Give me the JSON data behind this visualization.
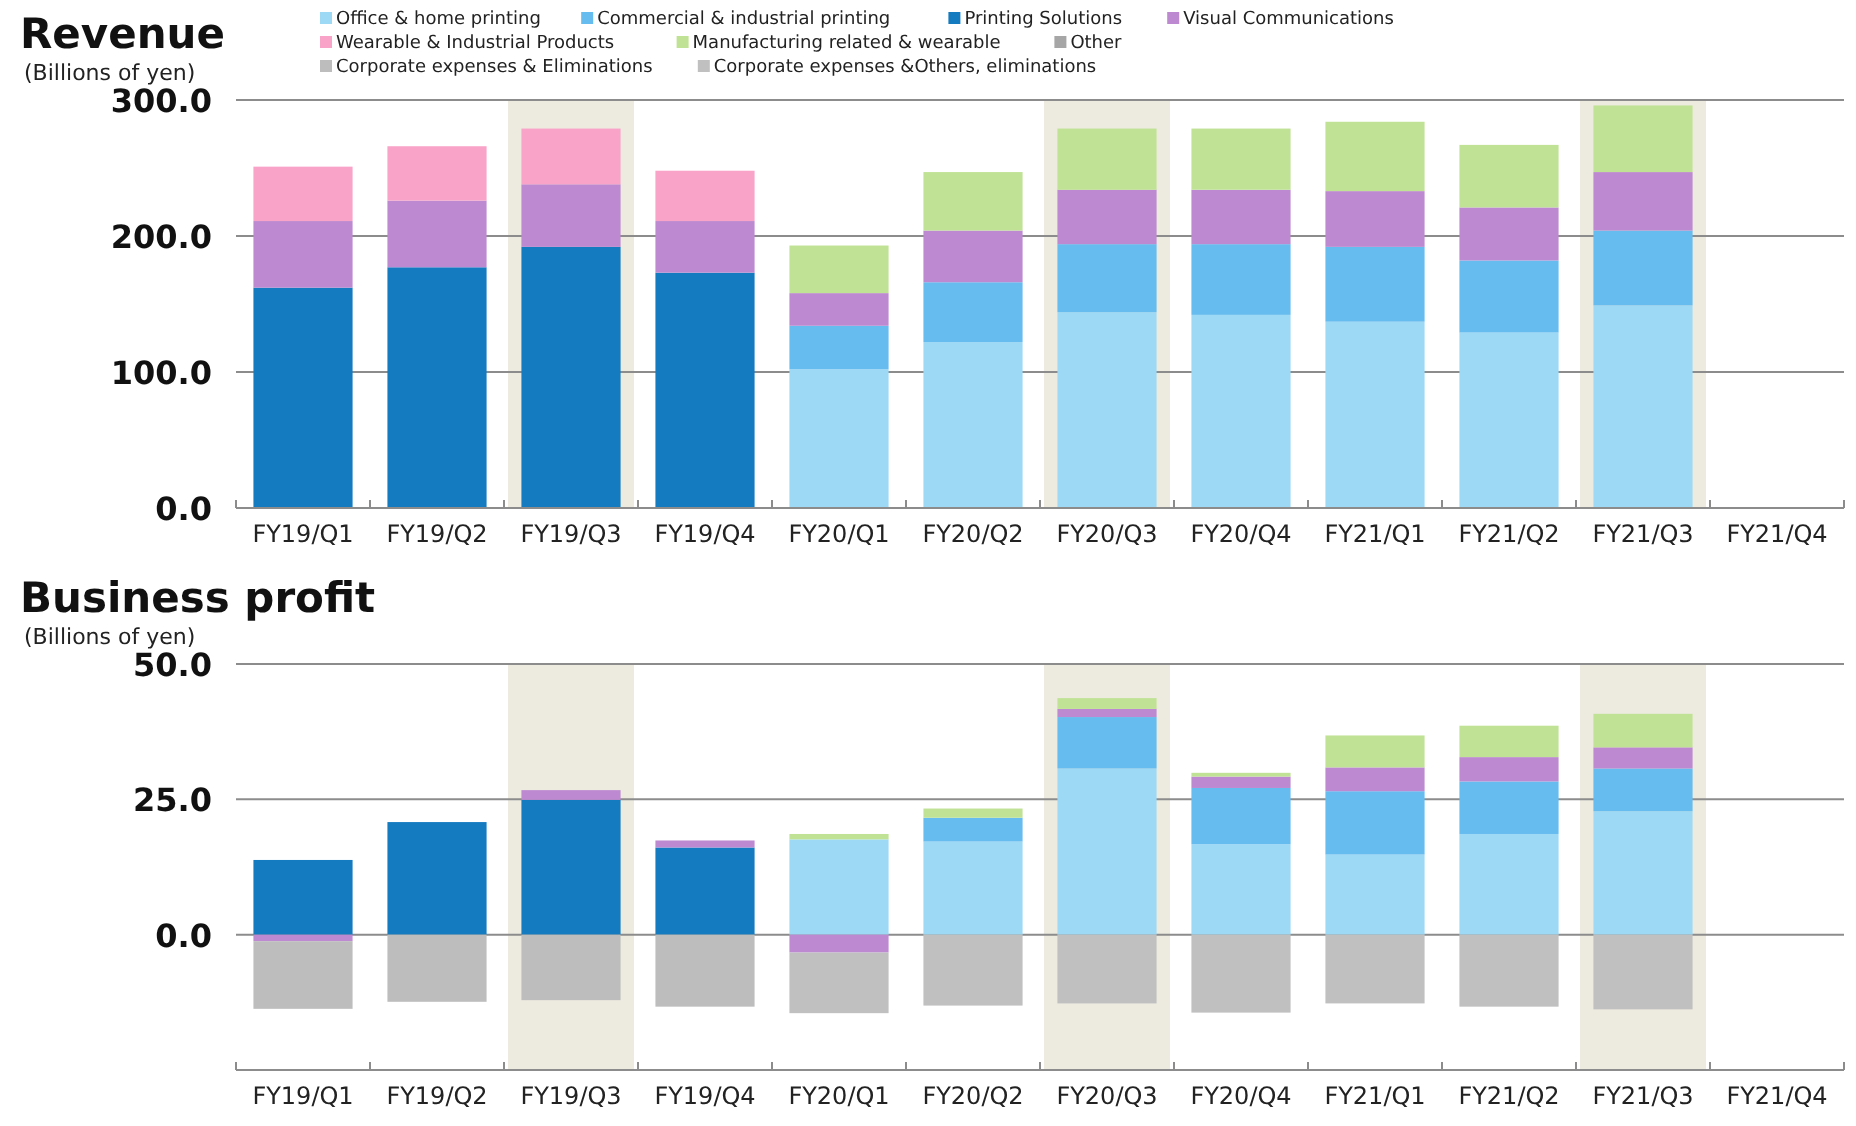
{
  "chart_data": [
    {
      "type": "bar",
      "title": "Revenue",
      "ylabel": "(Billions of yen)",
      "stacked": true,
      "grid": "y",
      "legend": "top",
      "categories": [
        "FY19/Q1",
        "FY19/Q2",
        "FY19/Q3",
        "FY19/Q4",
        "FY20/Q1",
        "FY20/Q2",
        "FY20/Q3",
        "FY20/Q4",
        "FY21/Q1",
        "FY21/Q2",
        "FY21/Q3",
        "FY21/Q4"
      ],
      "ylim": [
        0,
        300
      ],
      "yticks": [
        {
          "value": 0,
          "label": "0.0"
        },
        {
          "value": 100,
          "label": "100.0"
        },
        {
          "value": 200,
          "label": "200.0"
        },
        {
          "value": 300,
          "label": "300.0"
        }
      ],
      "bands": [
        {
          "axis": "x",
          "from": "FY19/Q3",
          "to": "FY19/Q3",
          "color": "#edebe0"
        },
        {
          "axis": "x",
          "from": "FY20/Q3",
          "to": "FY20/Q3",
          "color": "#edebe0"
        },
        {
          "axis": "x",
          "from": "FY21/Q3",
          "to": "FY21/Q3",
          "color": "#edebe0"
        }
      ],
      "series": [
        {
          "name": "Office & home printing",
          "color": "#9dd9f5",
          "values": [
            null,
            null,
            null,
            null,
            102,
            122,
            144,
            142,
            137,
            129,
            149,
            null
          ]
        },
        {
          "name": "Commercial & industrial printing",
          "color": "#66bbef",
          "values": [
            null,
            null,
            null,
            null,
            32,
            44,
            50,
            52,
            55,
            53,
            55,
            null
          ]
        },
        {
          "name": "Printing Solutions",
          "color": "#147bc1",
          "values": [
            162,
            177,
            192,
            173,
            null,
            null,
            null,
            null,
            null,
            null,
            null,
            null
          ]
        },
        {
          "name": "Visual Communications",
          "color": "#bd89d0",
          "values": [
            49,
            49,
            46,
            38,
            24,
            38,
            40,
            40,
            41,
            39,
            43,
            null
          ]
        },
        {
          "name": "Wearable &  Industrial Products",
          "color": "#f9a3c9",
          "values": [
            40,
            40,
            41,
            37,
            null,
            null,
            null,
            null,
            null,
            null,
            null,
            null
          ]
        },
        {
          "name": "Manufacturing related  & wearable",
          "color": "#c0e295",
          "values": [
            null,
            null,
            null,
            null,
            35,
            43,
            45,
            45,
            51,
            46,
            49,
            null
          ]
        },
        {
          "name": "Other",
          "color": "#a6a6a6",
          "values": [
            null,
            null,
            null,
            null,
            null,
            null,
            null,
            null,
            null,
            null,
            null,
            null
          ]
        },
        {
          "name": "Corporate expenses & Eliminations",
          "color": "#bdbdbd",
          "values": [
            null,
            null,
            null,
            null,
            null,
            null,
            null,
            null,
            null,
            null,
            null,
            null
          ]
        },
        {
          "name": "Corporate expenses &Others, eliminations",
          "color": "#c0c0c0",
          "values": [
            null,
            null,
            null,
            null,
            null,
            null,
            null,
            null,
            null,
            null,
            null,
            null
          ]
        }
      ]
    },
    {
      "type": "bar",
      "title": "Business profit",
      "ylabel": "(Billions of yen)",
      "stacked": true,
      "grid": "y",
      "categories": [
        "FY19/Q1",
        "FY19/Q2",
        "FY19/Q3",
        "FY19/Q4",
        "FY20/Q1",
        "FY20/Q2",
        "FY20/Q3",
        "FY20/Q4",
        "FY21/Q1",
        "FY21/Q2",
        "FY21/Q3",
        "FY21/Q4"
      ],
      "ylim": [
        -25,
        50
      ],
      "yticks": [
        {
          "value": 0,
          "label": "0.0"
        },
        {
          "value": 25,
          "label": "25.0"
        },
        {
          "value": 50,
          "label": "50.0"
        }
      ],
      "bands": [
        {
          "axis": "x",
          "from": "FY19/Q3",
          "to": "FY19/Q3",
          "color": "#edebe0"
        },
        {
          "axis": "x",
          "from": "FY20/Q3",
          "to": "FY20/Q3",
          "color": "#edebe0"
        },
        {
          "axis": "x",
          "from": "FY21/Q3",
          "to": "FY21/Q3",
          "color": "#edebe0"
        }
      ],
      "series": [
        {
          "color": "#9dd9f5",
          "values": [
            null,
            null,
            null,
            null,
            17.6,
            17.2,
            30.7,
            16.7,
            14.8,
            18.6,
            22.8,
            null
          ]
        },
        {
          "color": "#66bbef",
          "values": [
            null,
            null,
            null,
            null,
            null,
            4.4,
            9.5,
            10.4,
            11.7,
            9.7,
            7.9,
            null
          ]
        },
        {
          "color": "#147bc1",
          "values": [
            13.8,
            20.8,
            24.9,
            16.1,
            null,
            null,
            null,
            null,
            null,
            null,
            null,
            null
          ]
        },
        {
          "color": "#bd89d0",
          "values": [
            -1.2,
            null,
            1.8,
            1.3,
            -3.3,
            null,
            1.5,
            2.1,
            4.4,
            4.5,
            3.9,
            null
          ]
        },
        {
          "color": "#c0e295",
          "values": [
            null,
            null,
            null,
            null,
            1.0,
            1.7,
            2.0,
            0.7,
            5.9,
            5.8,
            6.2,
            null
          ]
        },
        {
          "color": "#bdbdbd",
          "values": [
            -12.5,
            -12.4,
            -12.1,
            -13.3,
            null,
            null,
            null,
            null,
            null,
            null,
            null,
            null
          ]
        },
        {
          "color": "#c0c0c0",
          "values": [
            null,
            null,
            null,
            null,
            -11.2,
            -13.1,
            -12.7,
            -14.4,
            -12.7,
            -13.3,
            -13.8,
            null
          ]
        }
      ]
    }
  ]
}
